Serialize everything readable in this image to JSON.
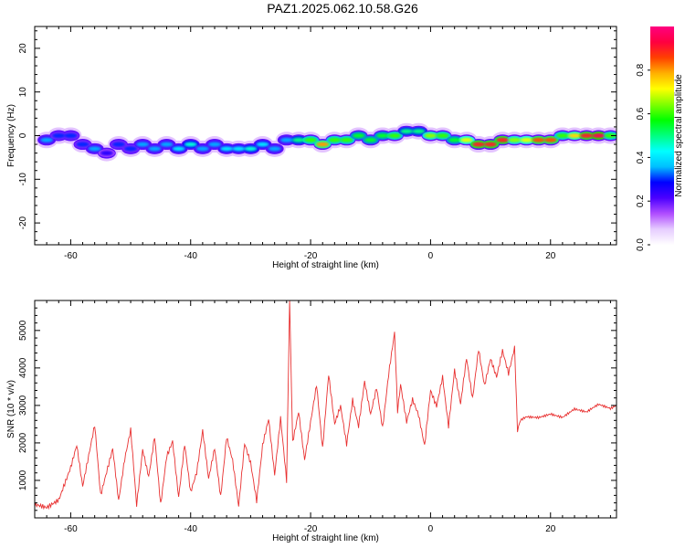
{
  "chart_data": [
    {
      "type": "heatmap",
      "title": "PAZ1.2025.062.10.58.G26",
      "xlabel": "Height of straight line (km)",
      "ylabel": "Frequency (Hz)",
      "xlim": [
        -66,
        31
      ],
      "ylim": [
        -25,
        25
      ],
      "xticks": [
        -60,
        -40,
        -20,
        0,
        20
      ],
      "yticks": [
        -20,
        -10,
        0,
        10,
        20
      ],
      "colorbar": {
        "label": "Normalized spectral amplitude",
        "range": [
          0,
          1
        ],
        "ticks": [
          0.0,
          0.2,
          0.4,
          0.6,
          0.8
        ],
        "colormap": [
          "#ffffff",
          "#e6ccff",
          "#b04dff",
          "#4b00ff",
          "#0000ff",
          "#00bfff",
          "#00ffff",
          "#00ff80",
          "#00ff00",
          "#80ff00",
          "#ffff00",
          "#ffb000",
          "#ff4000",
          "#ff0040",
          "#ff0080"
        ]
      },
      "track": {
        "x": [
          -64,
          -62,
          -60,
          -58,
          -56,
          -54,
          -52,
          -50,
          -48,
          -46,
          -44,
          -42,
          -40,
          -38,
          -36,
          -34,
          -32,
          -30,
          -28,
          -26,
          -24,
          -22,
          -20,
          -18,
          -16,
          -14,
          -12,
          -10,
          -8,
          -6,
          -4,
          -2,
          0,
          2,
          4,
          6,
          8,
          10,
          12,
          14,
          16,
          18,
          20,
          22,
          24,
          26,
          28,
          30
        ],
        "y": [
          -1,
          0,
          0,
          -2,
          -3,
          -4,
          -2,
          -3,
          -2,
          -3,
          -2,
          -3,
          -2,
          -3,
          -2,
          -3,
          -3,
          -3,
          -2,
          -3,
          -1,
          -1,
          -1,
          -2,
          -1,
          -1,
          0,
          -1,
          0,
          0,
          1,
          1,
          0,
          0,
          -1,
          -1,
          -2,
          -2,
          -1,
          -1,
          -1,
          -1,
          -1,
          0,
          0,
          0,
          0,
          0
        ],
        "amplitude": [
          0.35,
          0.3,
          0.3,
          0.3,
          0.35,
          0.25,
          0.3,
          0.3,
          0.35,
          0.35,
          0.35,
          0.4,
          0.45,
          0.35,
          0.35,
          0.4,
          0.4,
          0.45,
          0.4,
          0.35,
          0.35,
          0.5,
          0.6,
          0.8,
          0.6,
          0.6,
          0.55,
          0.55,
          0.55,
          0.6,
          0.5,
          0.5,
          0.65,
          0.6,
          0.55,
          0.7,
          0.9,
          0.9,
          0.9,
          0.65,
          0.7,
          0.85,
          0.85,
          0.6,
          0.75,
          0.9,
          0.95,
          0.6
        ]
      }
    },
    {
      "type": "line",
      "xlabel": "Height of straight line (km)",
      "ylabel": "SNR (10 * v/v)",
      "xlim": [
        -66,
        31
      ],
      "ylim": [
        0,
        5800
      ],
      "xticks": [
        -60,
        -40,
        -20,
        0,
        20
      ],
      "yticks": [
        1000,
        2000,
        3000,
        4000,
        5000
      ],
      "color": "#e83030",
      "x": [
        -66,
        -64,
        -62,
        -60,
        -59,
        -58,
        -57,
        -56,
        -55,
        -54,
        -53,
        -52,
        -51,
        -50,
        -49,
        -48,
        -47,
        -46,
        -45,
        -44,
        -43,
        -42,
        -41,
        -40,
        -39,
        -38,
        -37,
        -36,
        -35,
        -34,
        -33,
        -32,
        -31,
        -30,
        -29,
        -28,
        -27,
        -26,
        -25,
        -24,
        -23.5,
        -23,
        -22,
        -21,
        -20,
        -19,
        -18,
        -17,
        -16,
        -15,
        -14,
        -13,
        -12,
        -11,
        -10,
        -9,
        -8,
        -7,
        -6,
        -5.5,
        -5,
        -4,
        -3,
        -2,
        -1,
        0,
        1,
        2,
        3,
        4,
        5,
        6,
        7,
        8,
        9,
        10,
        11,
        12,
        13,
        14,
        14.5,
        15,
        16,
        18,
        20,
        22,
        24,
        26,
        28,
        30,
        31
      ],
      "y": [
        300,
        250,
        500,
        1400,
        2000,
        900,
        1700,
        2500,
        600,
        1200,
        1800,
        400,
        1500,
        2300,
        300,
        1800,
        1100,
        2200,
        400,
        1700,
        2100,
        600,
        2000,
        700,
        1200,
        2300,
        1000,
        1800,
        500,
        2100,
        1500,
        300,
        2000,
        1500,
        500,
        2000,
        2700,
        1200,
        2700,
        1000,
        5800,
        2000,
        2800,
        1500,
        2500,
        3500,
        1800,
        3800,
        2500,
        3000,
        2000,
        3200,
        2500,
        3700,
        2800,
        3500,
        2400,
        3800,
        4900,
        2800,
        3500,
        2500,
        3100,
        2700,
        1900,
        3400,
        3000,
        3800,
        2500,
        4000,
        3100,
        4300,
        3200,
        4500,
        3500,
        4200,
        3700,
        4400,
        3800,
        4500,
        2300,
        2600,
        2700,
        2700,
        2800,
        2700,
        2900,
        2800,
        3000,
        2900,
        3000
      ]
    }
  ]
}
